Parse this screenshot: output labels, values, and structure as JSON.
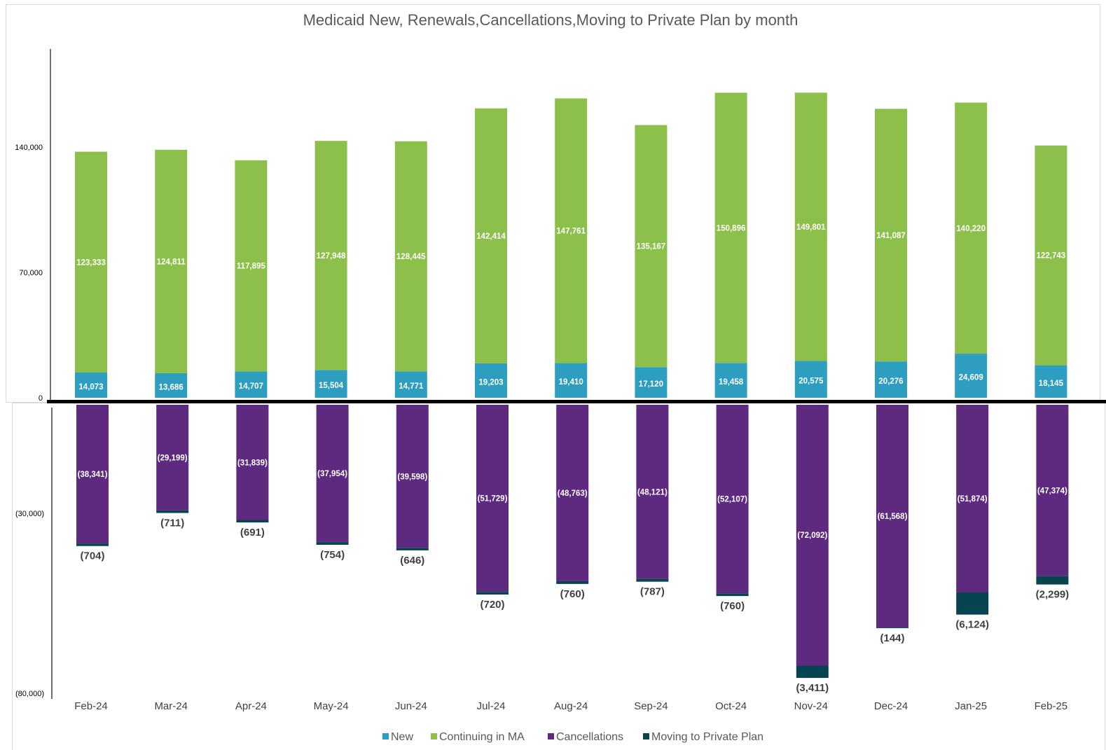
{
  "chart_data": {
    "type": "bar",
    "stacked": true,
    "title": "Medicaid New, Renewals,Cancellations,Moving to Private Plan by month",
    "categories": [
      "Feb-24",
      "Mar-24",
      "Apr-24",
      "May-24",
      "Jun-24",
      "Jul-24",
      "Aug-24",
      "Sep-24",
      "Oct-24",
      "Nov-24",
      "Dec-24",
      "Jan-25",
      "Feb-25"
    ],
    "yticks_upper": [
      {
        "value": 140000,
        "label": "140,000"
      },
      {
        "value": 70000,
        "label": "70,000"
      },
      {
        "value": 0,
        "label": "0"
      }
    ],
    "yticks_lower": [
      {
        "value": -30000,
        "label": "(30,000)"
      },
      {
        "value": -80000,
        "label": "(80,000)"
      }
    ],
    "upper_ylim": [
      0,
      170000
    ],
    "lower_ylim": [
      -80000,
      0
    ],
    "grid": false,
    "legend_position": "bottom",
    "series": [
      {
        "name": "New",
        "color": "#2e9ec0",
        "values": [
          14073,
          13686,
          14707,
          15504,
          14771,
          19203,
          19410,
          17120,
          19458,
          20575,
          20276,
          24609,
          18145
        ],
        "labels": [
          "14,073",
          "13,686",
          "14,707",
          "15,504",
          "14,771",
          "19,203",
          "19,410",
          "17,120",
          "19,458",
          "20,575",
          "20,276",
          "24,609",
          "18,145"
        ]
      },
      {
        "name": "Continuing in MA",
        "color": "#8cc04a",
        "values": [
          123333,
          124811,
          117895,
          127948,
          128445,
          142414,
          147761,
          135167,
          150896,
          149801,
          141087,
          140220,
          122743
        ],
        "labels": [
          "123,333",
          "124,811",
          "117,895",
          "127,948",
          "128,445",
          "142,414",
          "147,761",
          "135,167",
          "150,896",
          "149,801",
          "141,087",
          "140,220",
          "122,743"
        ]
      },
      {
        "name": "Cancellations",
        "color": "#5d2a80",
        "values": [
          -38341,
          -29199,
          -31839,
          -37954,
          -39598,
          -51729,
          -48763,
          -48121,
          -52107,
          -72092,
          -61568,
          -51874,
          -47374
        ],
        "labels": [
          "(38,341)",
          "(29,199)",
          "(31,839)",
          "(37,954)",
          "(39,598)",
          "(51,729)",
          "(48,763)",
          "(48,121)",
          "(52,107)",
          "(72,092)",
          "(61,568)",
          "(51,874)",
          "(47,374)"
        ]
      },
      {
        "name": "Moving to Private Plan",
        "color": "#07444f",
        "values": [
          -704,
          -711,
          -691,
          -754,
          -646,
          -720,
          -760,
          -787,
          -760,
          -3411,
          -144,
          -6124,
          -2299
        ],
        "labels": [
          "(704)",
          "(711)",
          "(691)",
          "(754)",
          "(646)",
          "(720)",
          "(760)",
          "(787)",
          "(760)",
          "(3,411)",
          "(144)",
          "(6,124)",
          "(2,299)"
        ]
      }
    ]
  }
}
